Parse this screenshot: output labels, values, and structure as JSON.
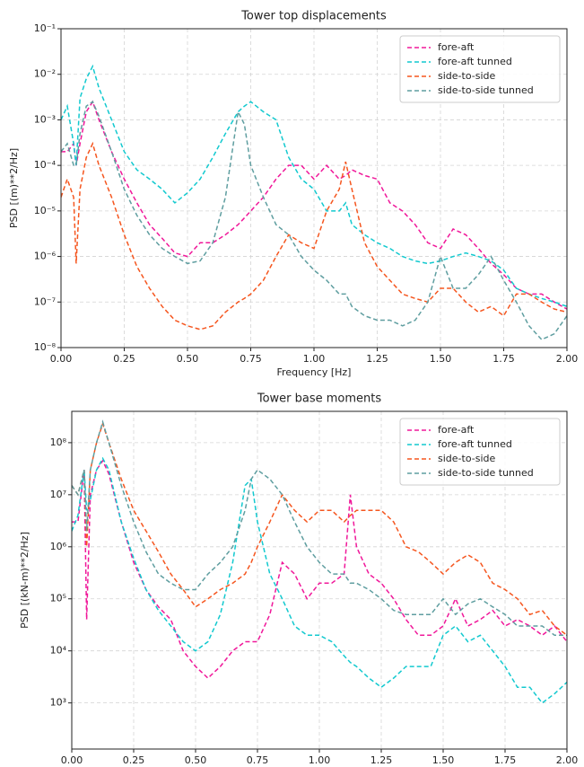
{
  "chart_data": [
    {
      "type": "line",
      "title": "Tower top displacements",
      "xlabel": "Frequency [Hz]",
      "ylabel": "PSD [(m)**2/Hz]",
      "yscale": "log",
      "grid": true,
      "legend": "upper right",
      "xlim": [
        0,
        2
      ],
      "ylim": [
        1e-08,
        0.1
      ],
      "xticks": [
        {
          "value": 0,
          "label": "0.00"
        },
        {
          "value": 0.25,
          "label": "0.25"
        },
        {
          "value": 0.5,
          "label": "0.50"
        },
        {
          "value": 0.75,
          "label": "0.75"
        },
        {
          "value": 1,
          "label": "1.00"
        },
        {
          "value": 1.25,
          "label": "1.25"
        },
        {
          "value": 1.5,
          "label": "1.50"
        },
        {
          "value": 1.75,
          "label": "1.75"
        },
        {
          "value": 2,
          "label": "2.00"
        }
      ],
      "yticks": [
        {
          "value": 1e-08,
          "label": "10⁻⁸"
        },
        {
          "value": 1e-07,
          "label": "10⁻⁷"
        },
        {
          "value": 1e-06,
          "label": "10⁻⁶"
        },
        {
          "value": 1e-05,
          "label": "10⁻⁵"
        },
        {
          "value": 0.0001,
          "label": "10⁻⁴"
        },
        {
          "value": 0.001,
          "label": "10⁻³"
        },
        {
          "value": 0.01,
          "label": "10⁻²"
        },
        {
          "value": 0.1,
          "label": "10⁻¹"
        }
      ],
      "x": [
        0,
        0.025,
        0.05,
        0.06,
        0.075,
        0.1,
        0.125,
        0.15,
        0.2,
        0.25,
        0.3,
        0.35,
        0.4,
        0.45,
        0.5,
        0.55,
        0.6,
        0.65,
        0.7,
        0.725,
        0.75,
        0.8,
        0.85,
        0.9,
        0.95,
        1.0,
        1.05,
        1.1,
        1.125,
        1.15,
        1.2,
        1.25,
        1.3,
        1.35,
        1.4,
        1.45,
        1.5,
        1.55,
        1.6,
        1.65,
        1.7,
        1.75,
        1.8,
        1.85,
        1.9,
        1.95,
        2.0
      ],
      "series": [
        {
          "name": "fore-aft",
          "color": "#f0189a",
          "values": [
            0.0002,
            0.0002,
            0.0003,
            0.0001,
            0.0003,
            0.0015,
            0.0025,
            0.001,
            0.0002,
            5e-05,
            1.5e-05,
            5e-06,
            2.5e-06,
            1.2e-06,
            1e-06,
            2e-06,
            2e-06,
            3e-06,
            5e-06,
            7e-06,
            1e-05,
            2e-05,
            5e-05,
            0.0001,
            0.0001,
            5e-05,
            0.0001,
            5e-05,
            6e-05,
            8e-05,
            6e-05,
            5e-05,
            1.5e-05,
            1e-05,
            5e-06,
            2e-06,
            1.5e-06,
            4e-06,
            3e-06,
            1.5e-06,
            7e-07,
            4e-07,
            2e-07,
            1.5e-07,
            1.5e-07,
            1e-07,
            7e-08
          ]
        },
        {
          "name": "fore-aft tunned",
          "color": "#12c9cf",
          "values": [
            0.001,
            0.002,
            0.0003,
            0.0001,
            0.003,
            0.008,
            0.015,
            0.005,
            0.001,
            0.0002,
            8e-05,
            5e-05,
            3e-05,
            1.5e-05,
            2.5e-05,
            5e-05,
            0.00015,
            0.0005,
            0.0015,
            0.002,
            0.0025,
            0.0015,
            0.001,
            0.00015,
            5e-05,
            3e-05,
            1e-05,
            1e-05,
            1.5e-05,
            5e-06,
            3e-06,
            2e-06,
            1.5e-06,
            1e-06,
            8e-07,
            7e-07,
            8e-07,
            1e-06,
            1.2e-06,
            1e-06,
            8e-07,
            5e-07,
            2e-07,
            1.5e-07,
            1.2e-07,
            1e-07,
            8e-08
          ]
        },
        {
          "name": "side-to-side",
          "color": "#f5561f",
          "values": [
            2e-05,
            5e-05,
            2e-05,
            7e-07,
            3e-05,
            0.00015,
            0.0003,
            0.0001,
            2e-05,
            3e-06,
            6e-07,
            2e-07,
            8e-08,
            4e-08,
            3e-08,
            2.5e-08,
            3e-08,
            6e-08,
            1e-07,
            1.2e-07,
            1.5e-07,
            3e-07,
            1e-06,
            3e-06,
            2e-06,
            1.5e-06,
            1e-05,
            3e-05,
            0.00012,
            3e-05,
            2e-06,
            6e-07,
            3e-07,
            1.5e-07,
            1.2e-07,
            1e-07,
            2e-07,
            2e-07,
            1e-07,
            6e-08,
            8e-08,
            5e-08,
            1.5e-07,
            1.5e-07,
            1e-07,
            7e-08,
            6e-08
          ]
        },
        {
          "name": "side-to-side tunned",
          "color": "#5f9ea0",
          "values": [
            0.0002,
            0.0003,
            0.0001,
            0.0001,
            0.0005,
            0.002,
            0.0025,
            0.0012,
            0.0002,
            3e-05,
            8e-06,
            3e-06,
            1.5e-06,
            1e-06,
            7e-07,
            8e-07,
            2e-06,
            2e-05,
            0.0015,
            0.0008,
            0.0001,
            2e-05,
            5e-06,
            3e-06,
            1e-06,
            5e-07,
            3e-07,
            1.5e-07,
            1.5e-07,
            8e-08,
            5e-08,
            4e-08,
            4e-08,
            3e-08,
            4e-08,
            1e-07,
            1e-06,
            2e-07,
            2e-07,
            4e-07,
            1e-06,
            3e-07,
            1e-07,
            3e-08,
            1.5e-08,
            2e-08,
            5e-08
          ]
        }
      ]
    },
    {
      "type": "line",
      "title": "Tower base moments",
      "xlabel": "Frequency [Hz]",
      "ylabel": "PSD [(kN-m)**2/Hz]",
      "yscale": "log",
      "grid": true,
      "legend": "upper right",
      "xlim": [
        0,
        2
      ],
      "ylim": [
        130,
        400000000
      ],
      "xticks": [
        {
          "value": 0,
          "label": "0.00"
        },
        {
          "value": 0.25,
          "label": "0.25"
        },
        {
          "value": 0.5,
          "label": "0.50"
        },
        {
          "value": 0.75,
          "label": "0.75"
        },
        {
          "value": 1,
          "label": "1.00"
        },
        {
          "value": 1.25,
          "label": "1.25"
        },
        {
          "value": 1.5,
          "label": "1.50"
        },
        {
          "value": 1.75,
          "label": "1.75"
        },
        {
          "value": 2,
          "label": "2.00"
        }
      ],
      "yticks": [
        {
          "value": 1000.0,
          "label": "10³"
        },
        {
          "value": 10000.0,
          "label": "10⁴"
        },
        {
          "value": 100000.0,
          "label": "10⁵"
        },
        {
          "value": 1000000.0,
          "label": "10⁶"
        },
        {
          "value": 10000000.0,
          "label": "10⁷"
        },
        {
          "value": 100000000.0,
          "label": "10⁸"
        }
      ],
      "x": [
        0,
        0.025,
        0.05,
        0.06,
        0.075,
        0.1,
        0.125,
        0.15,
        0.2,
        0.25,
        0.3,
        0.35,
        0.4,
        0.45,
        0.5,
        0.55,
        0.6,
        0.65,
        0.7,
        0.725,
        0.75,
        0.8,
        0.85,
        0.9,
        0.95,
        1.0,
        1.05,
        1.1,
        1.125,
        1.15,
        1.2,
        1.25,
        1.3,
        1.35,
        1.4,
        1.45,
        1.5,
        1.55,
        1.6,
        1.65,
        1.7,
        1.75,
        1.8,
        1.85,
        1.9,
        1.95,
        2.0
      ],
      "series": [
        {
          "name": "fore-aft",
          "color": "#f0189a",
          "values": [
            3000000.0,
            3000000.0,
            30000000.0,
            40000.0,
            10000000.0,
            30000000.0,
            45000000.0,
            25000000.0,
            3000000.0,
            500000.0,
            150000.0,
            70000.0,
            40000.0,
            10000.0,
            5000.0,
            3000.0,
            5000.0,
            10000.0,
            15000.0,
            15000.0,
            15000.0,
            50000.0,
            500000.0,
            300000.0,
            100000.0,
            200000.0,
            200000.0,
            300000.0,
            10000000.0,
            1000000.0,
            300000.0,
            200000.0,
            100000.0,
            40000.0,
            20000.0,
            20000.0,
            30000.0,
            100000.0,
            30000.0,
            40000.0,
            60000.0,
            30000.0,
            40000.0,
            30000.0,
            20000.0,
            30000.0,
            15000.0
          ]
        },
        {
          "name": "fore-aft tunned",
          "color": "#12c9cf",
          "values": [
            2000000.0,
            4000000.0,
            30000000.0,
            5000000.0,
            8000000.0,
            30000000.0,
            50000000.0,
            30000000.0,
            3000000.0,
            600000.0,
            150000.0,
            60000.0,
            30000.0,
            15000.0,
            10000.0,
            15000.0,
            50000.0,
            500000.0,
            15000000.0,
            20000000.0,
            3000000.0,
            300000.0,
            100000.0,
            30000.0,
            20000.0,
            20000.0,
            15000.0,
            8000.0,
            6000.0,
            5000.0,
            3000.0,
            2000.0,
            3000.0,
            5000.0,
            5000.0,
            5000.0,
            20000.0,
            30000.0,
            15000.0,
            20000.0,
            10000.0,
            5000.0,
            2000.0,
            2000.0,
            1000.0,
            1500.0,
            2500.0
          ]
        },
        {
          "name": "side-to-side",
          "color": "#f5561f",
          "values": [
            15000000.0,
            10000000.0,
            30000000.0,
            1000000.0,
            30000000.0,
            100000000.0,
            230000000.0,
            100000000.0,
            20000000.0,
            5000000.0,
            2000000.0,
            800000.0,
            300000.0,
            150000.0,
            70000.0,
            100000.0,
            150000.0,
            200000.0,
            300000.0,
            500000.0,
            1000000.0,
            3000000.0,
            10000000.0,
            5000000.0,
            3000000.0,
            5000000.0,
            5000000.0,
            3000000.0,
            4000000.0,
            5000000.0,
            5000000.0,
            5000000.0,
            3000000.0,
            1000000.0,
            800000.0,
            500000.0,
            300000.0,
            500000.0,
            700000.0,
            500000.0,
            200000.0,
            150000.0,
            100000.0,
            50000.0,
            60000.0,
            30000.0,
            20000.0
          ]
        },
        {
          "name": "side-to-side tunned",
          "color": "#5f9ea0",
          "values": [
            15000000.0,
            10000000.0,
            30000000.0,
            2000000.0,
            30000000.0,
            100000000.0,
            250000000.0,
            100000000.0,
            15000000.0,
            3000000.0,
            800000.0,
            300000.0,
            200000.0,
            150000.0,
            150000.0,
            300000.0,
            500000.0,
            1000000.0,
            5000000.0,
            20000000.0,
            30000000.0,
            20000000.0,
            10000000.0,
            3000000.0,
            1000000.0,
            500000.0,
            300000.0,
            300000.0,
            200000.0,
            200000.0,
            150000.0,
            100000.0,
            60000.0,
            50000.0,
            50000.0,
            50000.0,
            100000.0,
            50000.0,
            80000.0,
            100000.0,
            70000.0,
            50000.0,
            30000.0,
            30000.0,
            30000.0,
            20000.0,
            20000.0
          ]
        }
      ]
    }
  ]
}
